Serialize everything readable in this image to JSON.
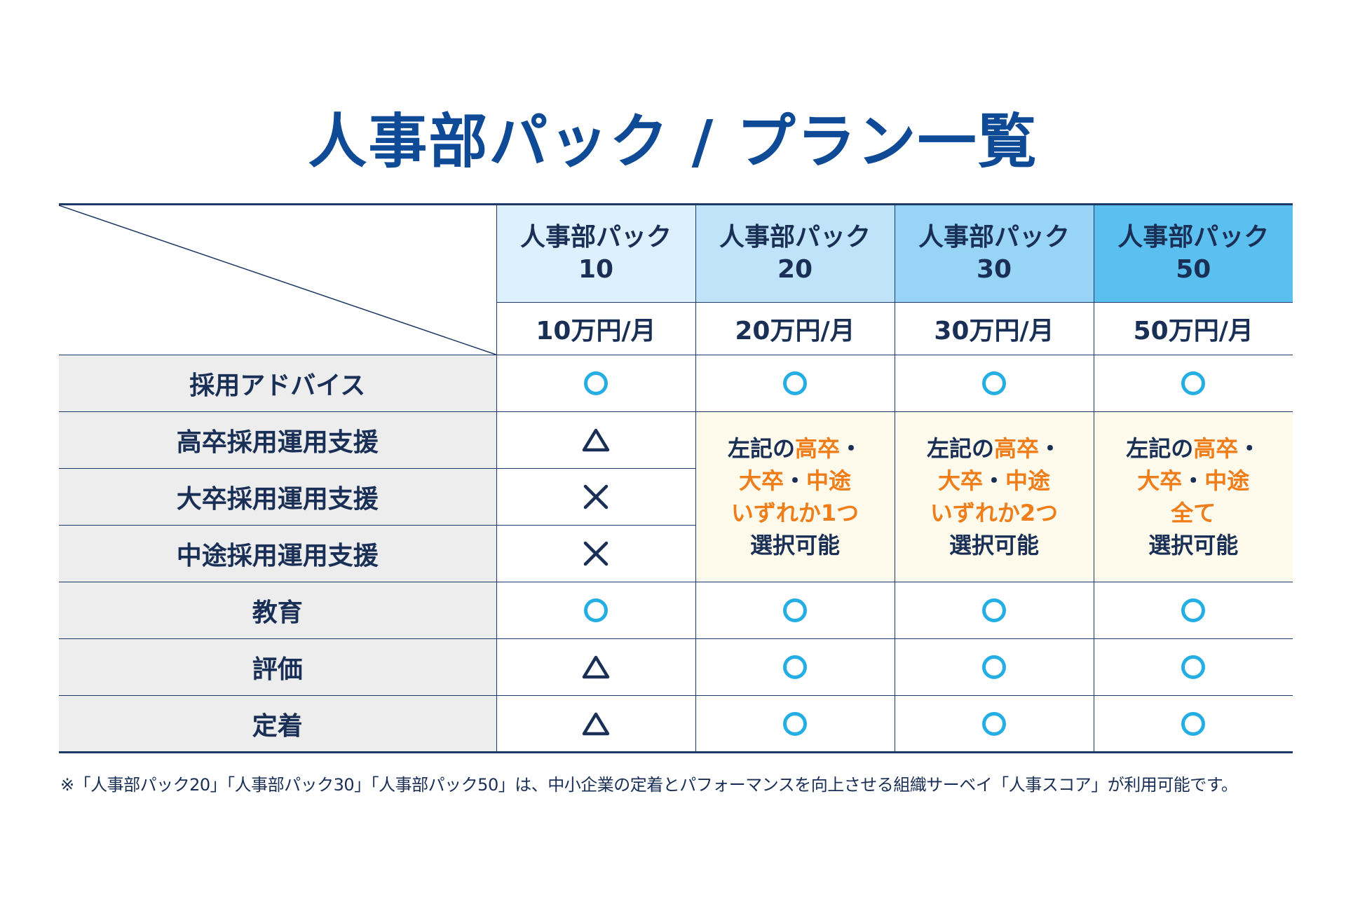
{
  "title": "人事部パック / プラン一覧",
  "plans": [
    {
      "name": "人事部パック",
      "number": "10",
      "price": "10万円/月"
    },
    {
      "name": "人事部パック",
      "number": "20",
      "price": "20万円/月"
    },
    {
      "name": "人事部パック",
      "number": "30",
      "price": "30万円/月"
    },
    {
      "name": "人事部パック",
      "number": "50",
      "price": "50万円/月"
    }
  ],
  "header_colors": [
    "#dcf1fd",
    "#bfe4f9",
    "#97d4f5",
    "#5bc0ef"
  ],
  "rows": [
    {
      "label": "採用アドバイス",
      "marks": [
        "circle",
        "circle",
        "circle",
        "circle"
      ]
    },
    {
      "label": "高卒採用運用支援",
      "marks": [
        "triangle",
        "merged",
        "merged",
        "merged"
      ]
    },
    {
      "label": "大卒採用運用支援",
      "marks": [
        "cross",
        "merged",
        "merged",
        "merged"
      ]
    },
    {
      "label": "中途採用運用支援",
      "marks": [
        "cross",
        "merged",
        "merged",
        "merged"
      ]
    },
    {
      "label": "教育",
      "marks": [
        "circle",
        "circle",
        "circle",
        "circle"
      ]
    },
    {
      "label": "評価",
      "marks": [
        "triangle",
        "circle",
        "circle",
        "circle"
      ]
    },
    {
      "label": "定着",
      "marks": [
        "triangle",
        "circle",
        "circle",
        "circle"
      ]
    }
  ],
  "merged_cells": {
    "p20": {
      "l1a": "左記の",
      "l1b": "高卒",
      "l1c": "・",
      "l2a": "大卒",
      "l2b": "・",
      "l2c": "中途",
      "l3": "いずれか1つ",
      "l4": "選択可能"
    },
    "p30": {
      "l1a": "左記の",
      "l1b": "高卒",
      "l1c": "・",
      "l2a": "大卒",
      "l2b": "・",
      "l2c": "中途",
      "l3": "いずれか2つ",
      "l4": "選択可能"
    },
    "p50": {
      "l1a": "左記の",
      "l1b": "高卒",
      "l1c": "・",
      "l2a": "大卒",
      "l2b": "・",
      "l2c": "中途",
      "l3": "全て",
      "l4": "選択可能"
    }
  },
  "footnote": "※「人事部パック20」「人事部パック30」「人事部パック50」は、中小企業の定着とパフォーマンスを向上させる組織サーベイ「人事スコア」が利用可能です。",
  "colors": {
    "title": "#0e4a95",
    "circle": "#25aee4",
    "emphasis": "#ee7d1a",
    "merged_bg": "#fefbec",
    "label_bg": "#ededee"
  }
}
